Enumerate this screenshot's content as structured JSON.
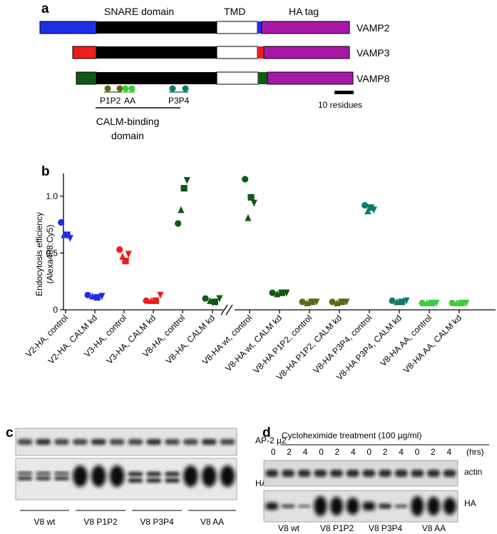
{
  "panel_a": {
    "label": "a",
    "header_snare": "SNARE domain",
    "header_tmd": "TMD",
    "header_ha": "HA tag",
    "constructs": [
      {
        "name": "VAMP2",
        "color": "#1f2fe6"
      },
      {
        "name": "VAMP3",
        "color": "#ee1c1c"
      },
      {
        "name": "VAMP8",
        "color": "#0e5a14"
      }
    ],
    "snare_color": "#000000",
    "ha_color": "#a818a8",
    "mutations": [
      {
        "name": "P1P2",
        "color": "#5a6a1a"
      },
      {
        "name": "AA",
        "color": "#3ccc3c"
      },
      {
        "name": "P3P4",
        "color": "#0d7a6a"
      }
    ],
    "scale_bar": "10 residues",
    "calm_line1": "CALM-binding",
    "calm_line2": "domain"
  },
  "panel_b": {
    "label": "b",
    "chart_data": {
      "type": "scatter",
      "ylabel_line1": "Endocytosis efficiency",
      "ylabel_line2": "(Alexa488:Cy5)",
      "ylim": [
        0,
        1.2
      ],
      "yticks": [
        {
          "v": 0,
          "label": "0"
        },
        {
          "v": 0.5,
          "label": "0.5"
        },
        {
          "v": 1.0,
          "label": "1.0"
        }
      ],
      "axis_break_after_index": 5,
      "groups": [
        {
          "label": "V2-HA, control",
          "color": "#1f2fe6",
          "points": [
            0.77,
            0.66,
            0.66,
            0.63
          ]
        },
        {
          "label": "V2-HA, CALM kd",
          "color": "#1f2fe6",
          "points": [
            0.13,
            0.12,
            0.11,
            0.12
          ]
        },
        {
          "label": "V3-HA, control",
          "color": "#ee1c1c",
          "points": [
            0.53,
            0.47,
            0.43,
            0.49
          ]
        },
        {
          "label": "V3-HA, CALM kd",
          "color": "#ee1c1c",
          "points": [
            0.08,
            0.08,
            0.08,
            0.13
          ]
        },
        {
          "label": "V8-HA, control",
          "color": "#0e5a14",
          "points": [
            0.76,
            0.88,
            1.07,
            1.14
          ]
        },
        {
          "label": "V8-HA, CALM kd",
          "color": "#0e5a14",
          "points": [
            0.1,
            0.08,
            0.07,
            0.1
          ]
        },
        {
          "label": "V8-HA wt, control",
          "color": "#0e5a14",
          "points": [
            1.15,
            0.81,
            0.99,
            0.94
          ]
        },
        {
          "label": "V8-HA wt, CALM kd",
          "color": "#0e5a14",
          "points": [
            0.15,
            0.14,
            0.15,
            0.15
          ]
        },
        {
          "label": "V8-HA P1P2, control",
          "color": "#5a6a1a",
          "points": [
            0.07,
            0.06,
            0.07,
            0.07
          ]
        },
        {
          "label": "V8-HA P1P2, CALM kd",
          "color": "#5a6a1a",
          "points": [
            0.07,
            0.06,
            0.07,
            0.07
          ]
        },
        {
          "label": "V8-HA P3P4, control",
          "color": "#0d7a6a",
          "points": [
            0.92,
            0.87,
            0.9,
            0.88
          ]
        },
        {
          "label": "V8-HA P3P4, CALM kd",
          "color": "#0d7a6a",
          "points": [
            0.08,
            0.07,
            0.07,
            0.08
          ]
        },
        {
          "label": "V8-HA AA, control",
          "color": "#3ccc3c",
          "points": [
            0.06,
            0.06,
            0.06,
            0.06
          ]
        },
        {
          "label": "V8-HA AA, CALM kd",
          "color": "#3ccc3c",
          "points": [
            0.06,
            0.06,
            0.06,
            0.06
          ]
        }
      ],
      "marker_order": [
        "circle",
        "triangle",
        "square",
        "triangle-down"
      ]
    }
  },
  "panel_c": {
    "label": "c",
    "band_labels": [
      "AP-2 µ2",
      "HA"
    ],
    "group_labels": [
      "V8 wt",
      "V8 P1P2",
      "V8 P3P4",
      "V8 AA"
    ]
  },
  "panel_d": {
    "label": "d",
    "treatment": "Cycloheximide treatment (100 µg/ml)",
    "times": [
      "0",
      "2",
      "4",
      "0",
      "2",
      "4",
      "0",
      "2",
      "4",
      "0",
      "2",
      "4"
    ],
    "unit": "(hrs)",
    "band_labels": [
      "actin",
      "HA"
    ],
    "group_labels": [
      "V8 wt",
      "V8 P1P2",
      "V8 P3P4",
      "V8 AA"
    ]
  }
}
